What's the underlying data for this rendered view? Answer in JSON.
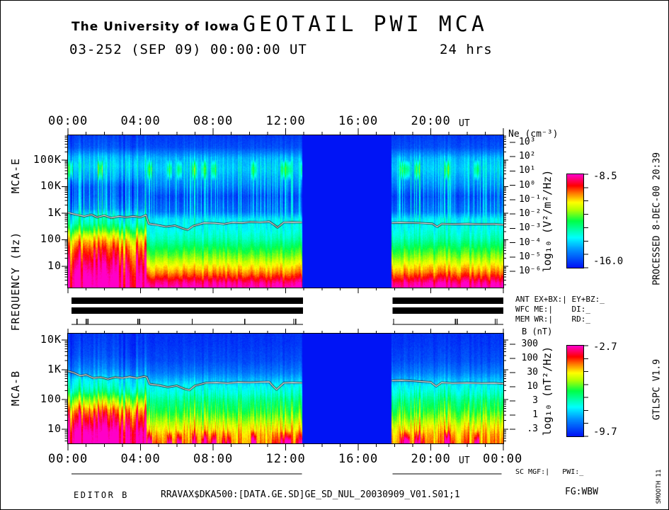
{
  "header": {
    "institution": "The University of Iowa",
    "title": "GEOTAIL PWI MCA",
    "date_line": "03-252 (SEP 09) 00:00:00 UT",
    "duration": "24 hrs"
  },
  "axes": {
    "time_labels": [
      "00:00",
      "04:00",
      "08:00",
      "12:00",
      "16:00",
      "20:00"
    ],
    "time_unit": "UT",
    "bottom_extra_label": "00:00",
    "freq_axis_label": "FREQUENCY (Hz)",
    "panel_e_label": "MCA-E",
    "panel_b_label": "MCA-B"
  },
  "ne_scale": {
    "title": "Ne (cm⁻³)",
    "ticks": [
      "10³",
      "10²",
      "10¹",
      "10⁰",
      "10⁻¹",
      "10⁻²",
      "10⁻³",
      "10⁻⁴",
      "10⁻⁵",
      "10⁻⁶"
    ]
  },
  "b_scale": {
    "title": "B (nT)",
    "ticks": [
      "300",
      "100",
      "30",
      "10",
      "3",
      "1",
      ".3"
    ]
  },
  "colorbars": [
    {
      "label": "log₁₀ (V²/m²/Hz)",
      "max": "-8.5",
      "min": "-16.0"
    },
    {
      "label": "log₁₀ (nT²/Hz)",
      "max": "-2.7",
      "min": "-9.7"
    }
  ],
  "status_rows": [
    "ANT EX+BX:| EY+BZ:_",
    "WFC ME:|    DI:_",
    "MEM WR:|    RD:_"
  ],
  "mgf_row_label": "SC MGF:|   PWI:_",
  "footer": {
    "editor": "EDITOR B",
    "file": "RRAVAX$DKA500:[DATA.GE.SD]GE_SD_NUL_20030909_V01.S01;1",
    "fg": "FG:WBW"
  },
  "side_notes": [
    "PROCESSED 8-DEC-00 20:39",
    "GTLSPC  V1.9",
    "SMOOTH 11"
  ],
  "chart_data": {
    "type": "heatmap",
    "title": "GEOTAIL PWI MCA 24-hour dynamic spectrograms (electric MCA-E and magnetic MCA-B spectral density vs time and frequency)",
    "time_axis": {
      "hours": [
        0,
        24
      ],
      "major_tick_hours": 4,
      "minor_tick_hours": 1,
      "tick_labels": [
        "00:00",
        "04:00",
        "08:00",
        "12:00",
        "16:00",
        "20:00",
        "00:00"
      ]
    },
    "data_gap_hours": [
      12.9,
      17.85
    ],
    "mode_change_hour": 4.35,
    "gap_color": "#0014F5",
    "colormap_stops": [
      [
        0,
        "#0014F5"
      ],
      [
        0.18,
        "#008CFF"
      ],
      [
        0.32,
        "#00FFFF"
      ],
      [
        0.5,
        "#00FF46"
      ],
      [
        0.62,
        "#B4FF00"
      ],
      [
        0.7,
        "#FFFF00"
      ],
      [
        0.8,
        "#FF7800"
      ],
      [
        0.88,
        "#FF0000"
      ],
      [
        1,
        "#FF00C8"
      ]
    ],
    "panels": [
      {
        "id": "mca-e",
        "label": "MCA-E",
        "units_label": "log₁₀ (V²/m²/Hz)",
        "color_scale_range": [
          -16.0,
          -8.5
        ],
        "green_spots": true,
        "bottom_patches": false,
        "freq_axis": {
          "unit": "Hz",
          "tick_labels": [
            "100K",
            "10K",
            "1K",
            "100",
            "10"
          ],
          "tick_exponents": [
            5,
            4,
            3,
            2,
            1
          ],
          "log10_range": [
            0.2,
            5.93
          ]
        },
        "intensity_profile_early": [
          [
            0,
            1
          ],
          [
            0.08,
            0.97
          ],
          [
            0.16,
            0.9
          ],
          [
            0.25,
            0.8
          ],
          [
            0.3,
            0.72
          ],
          [
            0.34,
            0.62
          ],
          [
            0.38,
            0.48
          ],
          [
            0.42,
            0.36
          ],
          [
            0.47,
            0.28
          ],
          [
            0.52,
            0.13
          ],
          [
            0.6,
            0.07
          ],
          [
            0.66,
            0.07
          ],
          [
            0.72,
            0.17
          ],
          [
            0.8,
            0.24
          ],
          [
            0.86,
            0.2
          ],
          [
            0.92,
            0.08
          ],
          [
            1,
            0.05
          ]
        ],
        "intensity_profile_late": [
          [
            0,
            1
          ],
          [
            0.03,
            0.96
          ],
          [
            0.06,
            0.88
          ],
          [
            0.1,
            0.78
          ],
          [
            0.14,
            0.7
          ],
          [
            0.2,
            0.58
          ],
          [
            0.26,
            0.48
          ],
          [
            0.32,
            0.38
          ],
          [
            0.38,
            0.32
          ],
          [
            0.45,
            0.28
          ],
          [
            0.5,
            0.12
          ],
          [
            0.6,
            0.06
          ],
          [
            0.68,
            0.16
          ],
          [
            0.78,
            0.24
          ],
          [
            0.85,
            0.21
          ],
          [
            0.92,
            0.08
          ],
          [
            1,
            0.05
          ]
        ],
        "streak_profile": [
          [
            0,
            0.02
          ],
          [
            0.35,
            0.05
          ],
          [
            0.45,
            0.12
          ],
          [
            0.52,
            0.3
          ],
          [
            0.62,
            0.3
          ],
          [
            0.72,
            0.22
          ],
          [
            0.82,
            0.18
          ],
          [
            0.9,
            0.06
          ],
          [
            1,
            0.02
          ]
        ],
        "overlay_trace_points_hour_hz": [
          [
            0,
            1050
          ],
          [
            0.4,
            900
          ],
          [
            0.9,
            760
          ],
          [
            1.3,
            880
          ],
          [
            1.6,
            700
          ],
          [
            2,
            820
          ],
          [
            2.4,
            660
          ],
          [
            2.8,
            760
          ],
          [
            3.2,
            700
          ],
          [
            3.6,
            760
          ],
          [
            4,
            700
          ],
          [
            4.3,
            850
          ],
          [
            4.45,
            400
          ],
          [
            4.9,
            360
          ],
          [
            5.4,
            310
          ],
          [
            5.9,
            340
          ],
          [
            6.3,
            270
          ],
          [
            6.6,
            235
          ],
          [
            6.9,
            330
          ],
          [
            7.5,
            430
          ],
          [
            8.1,
            420
          ],
          [
            8.6,
            390
          ],
          [
            9.1,
            450
          ],
          [
            9.6,
            430
          ],
          [
            10.1,
            470
          ],
          [
            10.6,
            450
          ],
          [
            11.1,
            480
          ],
          [
            11.35,
            370
          ],
          [
            11.55,
            290
          ],
          [
            11.9,
            450
          ],
          [
            12.4,
            460
          ],
          [
            12.9,
            450
          ],
          [
            17.85,
            430
          ],
          [
            18.3,
            445
          ],
          [
            19,
            435
          ],
          [
            19.6,
            420
          ],
          [
            20.1,
            400
          ],
          [
            20.35,
            305
          ],
          [
            20.6,
            395
          ],
          [
            21.2,
            385
          ],
          [
            22,
            395
          ],
          [
            22.8,
            385
          ],
          [
            23.5,
            390
          ],
          [
            24,
            365
          ]
        ]
      },
      {
        "id": "mca-b",
        "label": "MCA-B",
        "units_label": "log₁₀ (nT²/Hz)",
        "color_scale_range": [
          -9.7,
          -2.7
        ],
        "green_spots": false,
        "bottom_patches": true,
        "freq_axis": {
          "unit": "Hz",
          "tick_labels": [
            "10K",
            "1K",
            "100",
            "10"
          ],
          "tick_exponents": [
            4,
            3,
            2,
            1
          ],
          "log10_range": [
            0.524,
            4.21
          ]
        },
        "intensity_profile_early": [
          [
            0,
            1
          ],
          [
            0.1,
            0.97
          ],
          [
            0.17,
            0.89
          ],
          [
            0.24,
            0.82
          ],
          [
            0.3,
            0.74
          ],
          [
            0.36,
            0.62
          ],
          [
            0.42,
            0.5
          ],
          [
            0.47,
            0.38
          ],
          [
            0.52,
            0.32
          ],
          [
            0.58,
            0.28
          ],
          [
            0.63,
            0.18
          ],
          [
            0.7,
            0.12
          ],
          [
            0.8,
            0.07
          ],
          [
            0.9,
            0.05
          ],
          [
            1,
            0.04
          ]
        ],
        "intensity_profile_late": [
          [
            0,
            0.76
          ],
          [
            0.08,
            0.72
          ],
          [
            0.15,
            0.66
          ],
          [
            0.22,
            0.57
          ],
          [
            0.3,
            0.48
          ],
          [
            0.38,
            0.42
          ],
          [
            0.46,
            0.34
          ],
          [
            0.52,
            0.3
          ],
          [
            0.58,
            0.22
          ],
          [
            0.65,
            0.14
          ],
          [
            0.75,
            0.08
          ],
          [
            0.9,
            0.05
          ],
          [
            1,
            0.04
          ]
        ],
        "streak_profile": [
          [
            0,
            0.12
          ],
          [
            0.25,
            0.18
          ],
          [
            0.45,
            0.12
          ],
          [
            0.6,
            0.06
          ],
          [
            0.8,
            0.02
          ],
          [
            1,
            0
          ]
        ],
        "overlay_trace_points_hour_hz": [
          [
            0,
            900
          ],
          [
            0.3,
            800
          ],
          [
            0.7,
            620
          ],
          [
            1,
            680
          ],
          [
            1.4,
            520
          ],
          [
            1.8,
            560
          ],
          [
            2.2,
            480
          ],
          [
            2.6,
            560
          ],
          [
            3,
            520
          ],
          [
            3.4,
            580
          ],
          [
            3.8,
            520
          ],
          [
            4.2,
            600
          ],
          [
            4.35,
            560
          ],
          [
            4.5,
            330
          ],
          [
            5,
            300
          ],
          [
            5.5,
            260
          ],
          [
            6,
            290
          ],
          [
            6.4,
            230
          ],
          [
            6.7,
            205
          ],
          [
            7,
            290
          ],
          [
            7.6,
            360
          ],
          [
            8.2,
            370
          ],
          [
            8.8,
            350
          ],
          [
            9.4,
            380
          ],
          [
            10,
            370
          ],
          [
            10.6,
            385
          ],
          [
            11.1,
            390
          ],
          [
            11.3,
            280
          ],
          [
            11.5,
            215
          ],
          [
            11.9,
            360
          ],
          [
            12.4,
            370
          ],
          [
            12.9,
            360
          ],
          [
            17.85,
            430
          ],
          [
            18.4,
            440
          ],
          [
            19,
            420
          ],
          [
            19.5,
            400
          ],
          [
            20,
            380
          ],
          [
            20.3,
            275
          ],
          [
            20.6,
            370
          ],
          [
            21.2,
            350
          ],
          [
            22,
            360
          ],
          [
            22.8,
            350
          ],
          [
            23.5,
            355
          ],
          [
            24,
            340
          ]
        ]
      }
    ],
    "housekeeping": {
      "ant_on_hours": [
        [
          0.2,
          12.95
        ],
        [
          17.9,
          24
        ]
      ],
      "wfc_on_hours": [
        [
          0.2,
          12.95
        ],
        [
          17.9,
          24
        ]
      ],
      "mem_line_hours": [
        [
          0.2,
          12.95
        ],
        [
          17.9,
          24
        ]
      ],
      "mem_tick_hours": [
        0.5,
        1.0,
        1.1,
        3.85,
        3.95,
        6.85,
        9.75,
        12.45,
        12.55,
        17.95,
        21.35,
        21.45,
        23.55,
        23.65
      ],
      "sc_mgf_hours": [
        [
          0.2,
          12.9
        ],
        [
          17.9,
          23.9
        ]
      ]
    }
  }
}
